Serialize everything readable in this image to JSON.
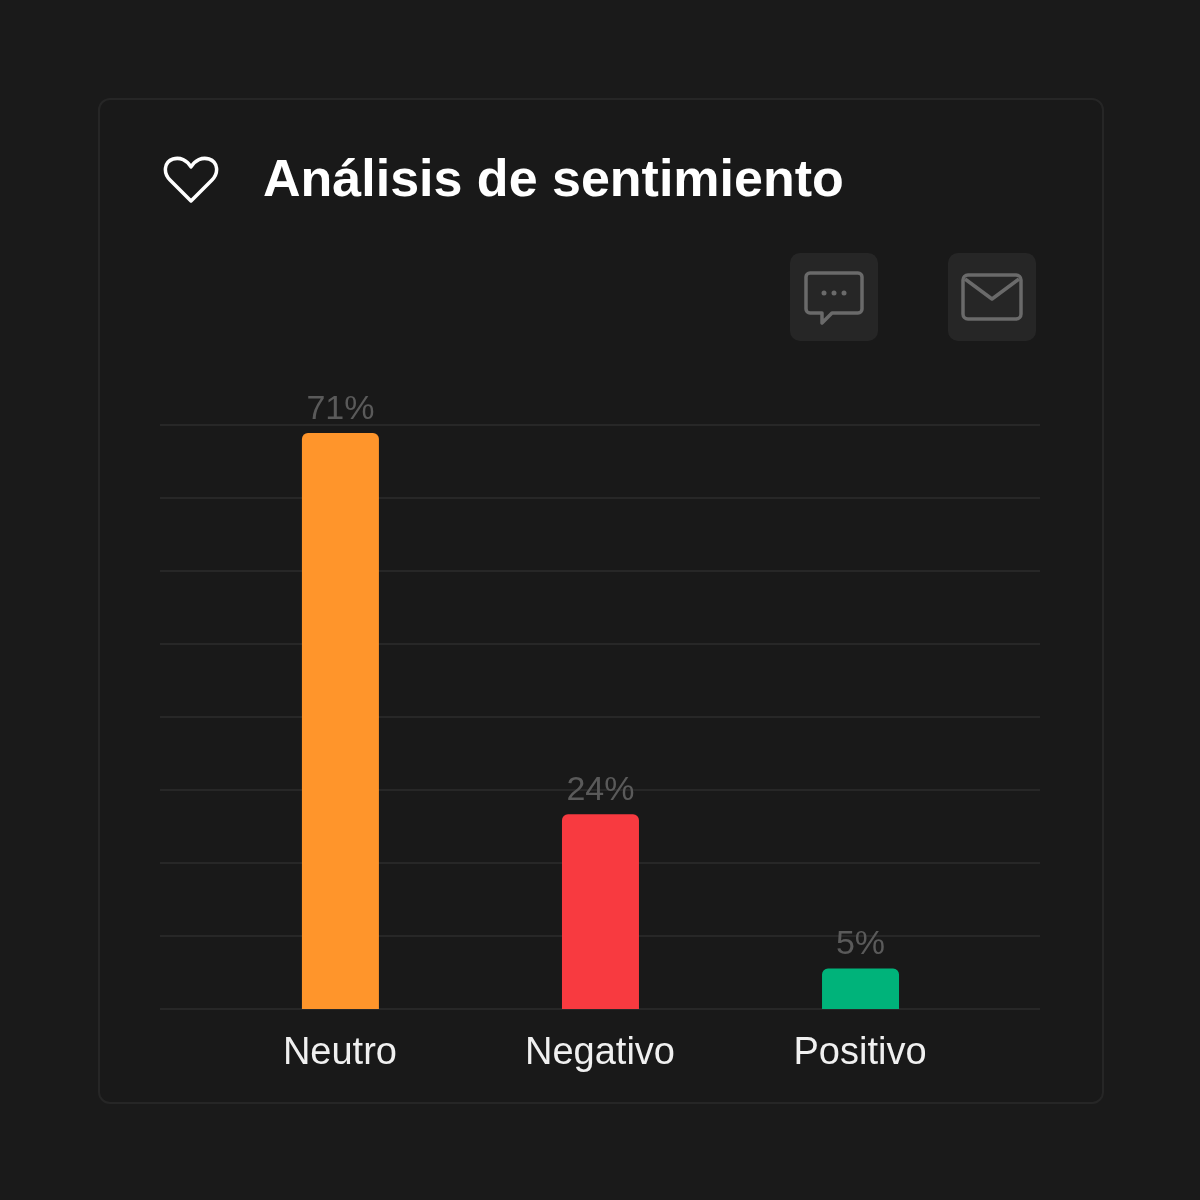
{
  "chart_data": {
    "type": "bar",
    "title": "Análisis de sentimiento",
    "categories": [
      "Neutro",
      "Negativo",
      "Positivo"
    ],
    "values": [
      71,
      24,
      5
    ],
    "value_labels": [
      "71%",
      "24%",
      "5%"
    ],
    "colors": [
      "#ff952b",
      "#f83a40",
      "#00b37a"
    ],
    "ylim": [
      0,
      72
    ],
    "yticks": [
      {
        "value": 0,
        "label": null
      },
      {
        "value": 9,
        "label": null
      },
      {
        "value": 18,
        "label": null
      },
      {
        "value": 27,
        "label": null
      },
      {
        "value": 36,
        "label": null
      },
      {
        "value": 45,
        "label": null
      },
      {
        "value": 54,
        "label": null
      },
      {
        "value": 63,
        "label": null
      },
      {
        "value": 72,
        "label": null
      }
    ],
    "grid": "y"
  }
}
